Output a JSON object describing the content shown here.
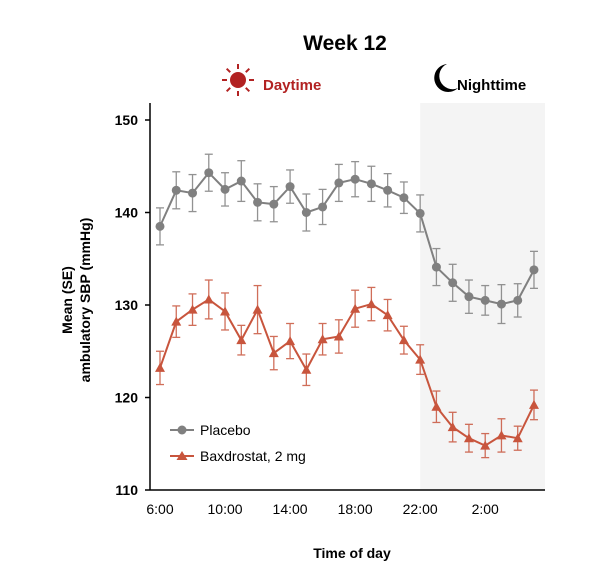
{
  "chart_data": {
    "type": "line",
    "title": "Week 12",
    "xlabel": "Time of day",
    "ylabel": [
      "Mean (SE)",
      "ambulatory SBP (mmHg)"
    ],
    "ylim": [
      110,
      150
    ],
    "yticks": [
      110,
      120,
      130,
      140,
      150
    ],
    "xtick_labels": [
      "6:00",
      "10:00",
      "14:00",
      "18:00",
      "22:00",
      "2:00"
    ],
    "x": [
      "6:00",
      "7:00",
      "8:00",
      "9:00",
      "10:00",
      "11:00",
      "12:00",
      "13:00",
      "14:00",
      "15:00",
      "16:00",
      "17:00",
      "18:00",
      "19:00",
      "20:00",
      "21:00",
      "22:00",
      "23:00",
      "0:00",
      "1:00",
      "2:00",
      "3:00",
      "4:00",
      "5:00"
    ],
    "regions": [
      {
        "label": "Daytime",
        "icon": "sun-icon",
        "color": "#b22222"
      },
      {
        "label": "Nighttime",
        "icon": "moon-icon",
        "color": "#000000",
        "start": "22:00",
        "shaded": "#f4f4f4"
      }
    ],
    "grid": false,
    "legend": "bottom-left",
    "series": [
      {
        "name": "Placebo",
        "marker": "circle",
        "color": "#808080",
        "values": [
          138.5,
          142.4,
          142.1,
          144.3,
          142.5,
          143.4,
          141.1,
          140.9,
          142.8,
          140.0,
          140.6,
          143.2,
          143.6,
          143.1,
          142.4,
          141.6,
          139.9,
          134.1,
          132.4,
          130.9,
          130.5,
          130.1,
          130.5,
          133.8
        ],
        "se": [
          2,
          2,
          2,
          2,
          1.8,
          2.2,
          2,
          1.9,
          1.8,
          2,
          1.9,
          2,
          1.9,
          1.9,
          1.8,
          1.7,
          2,
          2,
          2,
          1.8,
          1.6,
          2.1,
          1.8,
          2
        ]
      },
      {
        "name": "Baxdrostat, 2 mg",
        "marker": "triangle",
        "color": "#c8553d",
        "values": [
          123.2,
          128.2,
          129.5,
          130.6,
          129.3,
          126.2,
          129.5,
          124.8,
          126.1,
          123.0,
          126.3,
          126.6,
          129.6,
          130.1,
          128.9,
          126.2,
          124.1,
          119.0,
          116.8,
          115.6,
          114.8,
          115.9,
          115.6,
          119.2
        ],
        "se": [
          1.8,
          1.7,
          1.7,
          2.1,
          2,
          1.6,
          2.6,
          1.8,
          1.9,
          1.7,
          1.7,
          1.8,
          2,
          1.8,
          1.7,
          1.5,
          1.6,
          1.7,
          1.6,
          1.5,
          1.3,
          1.8,
          1.3,
          1.6
        ]
      }
    ]
  }
}
